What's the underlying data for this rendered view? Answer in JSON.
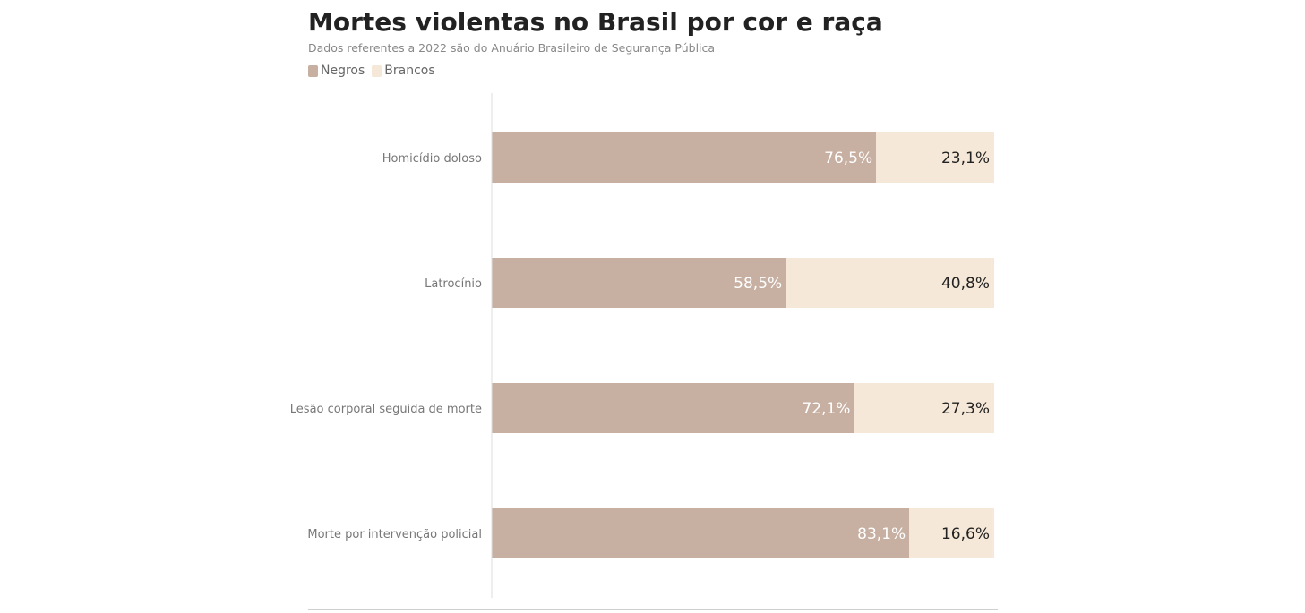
{
  "header": {
    "title": "Mortes violentas no Brasil por cor e raça",
    "subtitle": "Dados referentes a 2022 são do Anuário Brasileiro de Segurança Pública"
  },
  "colors": {
    "negros": "#c7afa2",
    "brancos": "#f6e8d8",
    "axis": "#dddddd"
  },
  "chart_data": {
    "type": "bar",
    "orientation": "horizontal",
    "stacked": true,
    "title": "Mortes violentas no Brasil por cor e raça",
    "subtitle": "Dados referentes a 2022 são do Anuário Brasileiro de Segurança Pública",
    "categories": [
      "Homicídio doloso",
      "Latrocínio",
      "Lesão corporal seguida de morte",
      "Morte por intervenção policial"
    ],
    "series": [
      {
        "name": "Negros",
        "values": [
          76.5,
          58.5,
          72.1,
          83.1
        ],
        "labels": [
          "76,5%",
          "58,5%",
          "72,1%",
          "83,1%"
        ]
      },
      {
        "name": "Brancos",
        "values": [
          23.1,
          40.8,
          27.3,
          16.6
        ],
        "labels": [
          "23,1%",
          "40,8%",
          "27,3%",
          "16,6%"
        ]
      }
    ],
    "legend": "top-left",
    "grid": false
  }
}
